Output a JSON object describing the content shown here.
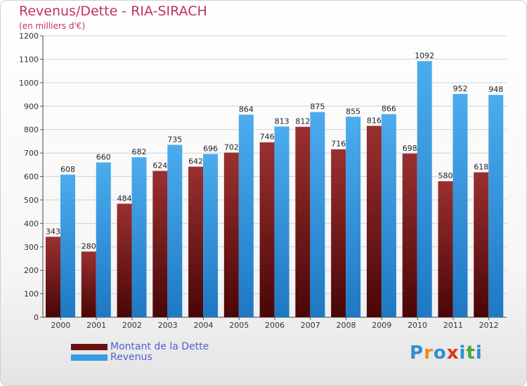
{
  "title": "Revenus/Dette - RIA-SIRACH",
  "subtitle": "(en milliers d'€)",
  "chart_data": {
    "type": "bar",
    "title": "Revenus/Dette - RIA-SIRACH",
    "subtitle": "(en milliers d'€)",
    "xlabel": "",
    "ylabel": "",
    "ylim": [
      0,
      1200
    ],
    "ytick_step": 100,
    "grid": true,
    "legend_position": "bottom-left",
    "categories": [
      "2000",
      "2001",
      "2002",
      "2003",
      "2004",
      "2005",
      "2006",
      "2007",
      "2008",
      "2009",
      "2010",
      "2011",
      "2012"
    ],
    "series": [
      {
        "name": "Montant de la Dette",
        "color": "#7a1a1a",
        "values": [
          343,
          280,
          484,
          624,
          642,
          702,
          746,
          812,
          716,
          816,
          698,
          580,
          618
        ]
      },
      {
        "name": "Revenus",
        "color": "#3a9ae0",
        "values": [
          608,
          660,
          682,
          735,
          696,
          864,
          813,
          875,
          855,
          866,
          1092,
          952,
          948
        ]
      }
    ]
  },
  "legend": {
    "items": [
      {
        "label": "Montant de la Dette",
        "color": "#6b0f0f"
      },
      {
        "label": "Revenus",
        "color": "#3a9ae0"
      }
    ]
  },
  "logo": {
    "letters": [
      "P",
      "r",
      "o",
      "x",
      "i",
      "t",
      "i"
    ],
    "colors": [
      "#2b8fd6",
      "#f08a1c",
      "#2b8fd6",
      "#e0321e",
      "#2b8fd6",
      "#4aa832",
      "#2b8fd6"
    ]
  }
}
